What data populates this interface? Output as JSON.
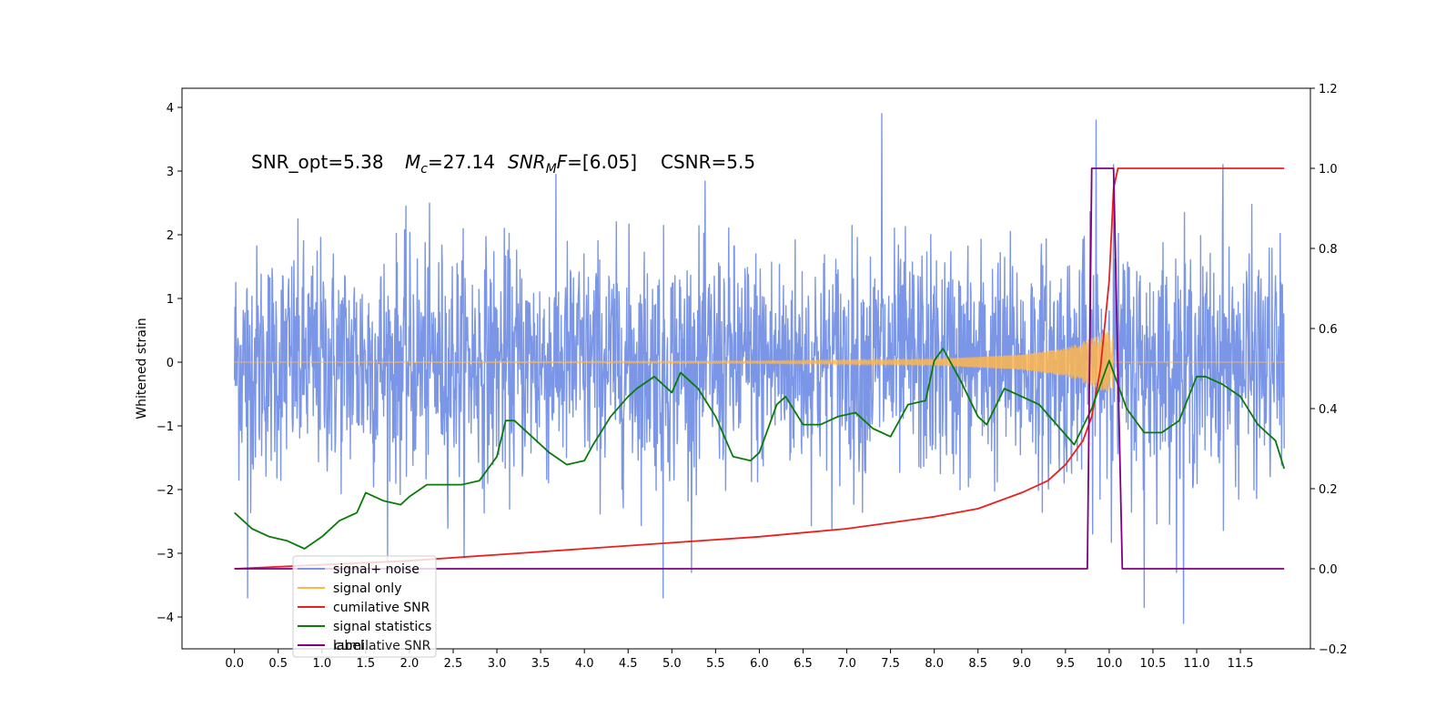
{
  "chart_data": {
    "type": "line",
    "annotation": {
      "snr_opt": "SNR_opt=5.38",
      "mc": "=27.14",
      "snr_mf": "=[6.05]",
      "csnr": "CSNR=5.5"
    },
    "ylabel": "Whitened strain",
    "xlim": [
      -0.6,
      12.3
    ],
    "ylim_left": [
      -4.5,
      4.3
    ],
    "ylim_right": [
      -0.2,
      1.2
    ],
    "x_ticks": [
      "0.0",
      "0.5",
      "1.0",
      "1.5",
      "2.0",
      "2.5",
      "3.0",
      "3.5",
      "4.0",
      "4.5",
      "5.0",
      "5.5",
      "6.0",
      "6.5",
      "7.0",
      "7.5",
      "8.0",
      "8.5",
      "9.0",
      "9.5",
      "10.0",
      "10.5",
      "11.0",
      "11.5"
    ],
    "y_left_ticks": [
      "4",
      "3",
      "2",
      "1",
      "0",
      "-1",
      "-2",
      "-3",
      "-4"
    ],
    "y_right_ticks": [
      "1.2",
      "1.0",
      "0.8",
      "0.6",
      "0.4",
      "0.2",
      "0.0",
      "−0.2"
    ],
    "legend": {
      "placement": "lower-left",
      "entries": [
        "signal+ noise",
        "signal only",
        "cumilative SNR",
        "signal statistics",
        "label",
        "cumilative SNR"
      ]
    },
    "colors": {
      "signal_noise": "#7b96e6",
      "signal_only": "#ffb74d",
      "cumulative_snr": "#e8201e",
      "signal_statistics": "#0b7a0b",
      "label": "#800080"
    },
    "series": [
      {
        "name": "signal+ noise",
        "axis": "left",
        "description_of_range": "noise band",
        "x_range": [
          0.0,
          12.0
        ],
        "typical_band": [
          -2.0,
          2.0
        ],
        "extremes": [
          [
            7.4,
            3.9
          ],
          [
            9.85,
            3.8
          ],
          [
            10.05,
            3.1
          ],
          [
            11.3,
            3.1
          ],
          [
            10.85,
            -4.1
          ],
          [
            0.15,
            -3.7
          ],
          [
            10.4,
            -3.85
          ],
          [
            4.9,
            -3.7
          ]
        ]
      },
      {
        "name": "signal only",
        "axis": "left",
        "chirp_end": 10.05,
        "envelope_points": [
          [
            0.0,
            0.0
          ],
          [
            6.0,
            0.02
          ],
          [
            8.0,
            0.05
          ],
          [
            9.0,
            0.12
          ],
          [
            9.5,
            0.22
          ],
          [
            9.8,
            0.38
          ],
          [
            10.0,
            0.5
          ],
          [
            10.05,
            0.4
          ],
          [
            10.1,
            0.0
          ],
          [
            12.0,
            0.0
          ]
        ]
      },
      {
        "name": "cumilative SNR",
        "axis": "right",
        "x": [
          0.0,
          1.0,
          2.0,
          3.0,
          4.0,
          5.0,
          6.0,
          7.0,
          8.0,
          8.5,
          9.0,
          9.3,
          9.5,
          9.7,
          9.8,
          9.9,
          10.0,
          10.05,
          10.1,
          12.0
        ],
        "values": [
          0.0,
          0.01,
          0.02,
          0.035,
          0.05,
          0.065,
          0.08,
          0.1,
          0.13,
          0.15,
          0.19,
          0.22,
          0.26,
          0.32,
          0.38,
          0.5,
          0.72,
          0.95,
          1.0,
          1.0
        ]
      },
      {
        "name": "signal statistics",
        "axis": "right",
        "x": [
          0.0,
          0.2,
          0.4,
          0.6,
          0.8,
          1.0,
          1.2,
          1.4,
          1.5,
          1.7,
          1.9,
          2.0,
          2.2,
          2.4,
          2.6,
          2.8,
          3.0,
          3.1,
          3.2,
          3.4,
          3.6,
          3.8,
          4.0,
          4.1,
          4.3,
          4.5,
          4.6,
          4.8,
          5.0,
          5.1,
          5.3,
          5.5,
          5.7,
          5.9,
          6.0,
          6.2,
          6.3,
          6.5,
          6.7,
          6.9,
          7.1,
          7.3,
          7.5,
          7.7,
          7.9,
          8.0,
          8.1,
          8.3,
          8.5,
          8.6,
          8.8,
          9.0,
          9.2,
          9.4,
          9.6,
          9.8,
          10.0,
          10.2,
          10.4,
          10.6,
          10.8,
          11.0,
          11.1,
          11.3,
          11.5,
          11.7,
          11.9,
          12.0
        ],
        "values": [
          0.14,
          0.1,
          0.08,
          0.07,
          0.05,
          0.08,
          0.12,
          0.14,
          0.19,
          0.17,
          0.16,
          0.18,
          0.21,
          0.21,
          0.21,
          0.22,
          0.28,
          0.37,
          0.37,
          0.33,
          0.29,
          0.26,
          0.27,
          0.31,
          0.38,
          0.43,
          0.45,
          0.48,
          0.44,
          0.49,
          0.45,
          0.38,
          0.28,
          0.27,
          0.29,
          0.41,
          0.43,
          0.36,
          0.36,
          0.38,
          0.39,
          0.35,
          0.33,
          0.41,
          0.42,
          0.52,
          0.55,
          0.47,
          0.38,
          0.36,
          0.45,
          0.43,
          0.41,
          0.36,
          0.31,
          0.4,
          0.52,
          0.4,
          0.34,
          0.34,
          0.37,
          0.48,
          0.48,
          0.46,
          0.43,
          0.36,
          0.32,
          0.25
        ]
      },
      {
        "name": "label",
        "axis": "right",
        "x": [
          0.0,
          9.75,
          9.8,
          10.05,
          10.15,
          12.0
        ],
        "values": [
          0.0,
          0.0,
          1.0,
          1.0,
          0.0,
          0.0
        ]
      }
    ]
  }
}
